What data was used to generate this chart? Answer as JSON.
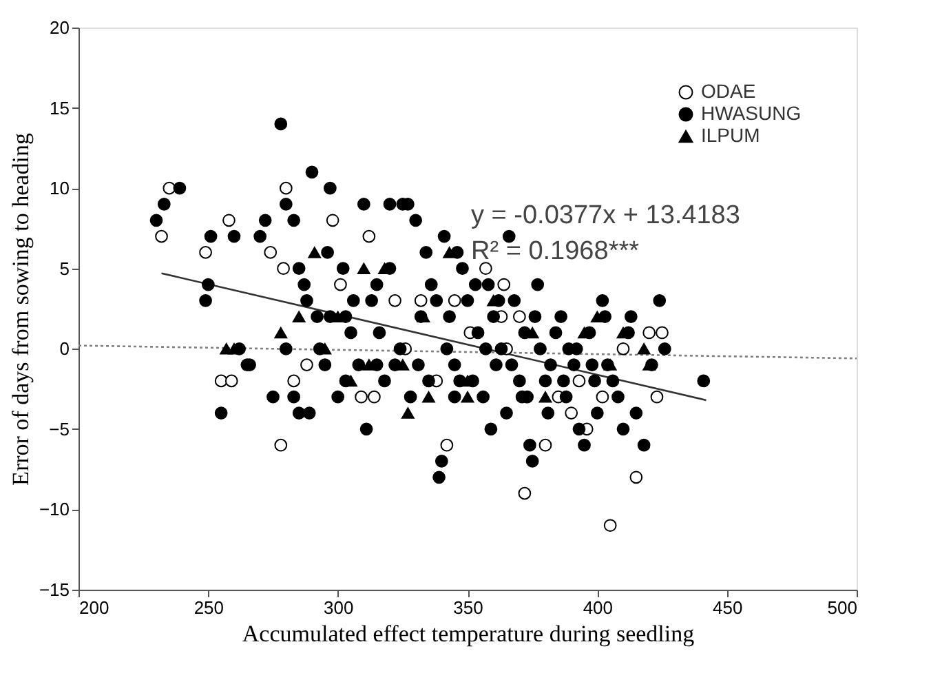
{
  "chart_data": {
    "type": "scatter",
    "xlabel": "Accumulated effect temperature during seedling",
    "ylabel": "Error of days from sowing to heading",
    "xlim": [
      200,
      500
    ],
    "xticks": [
      200,
      250,
      300,
      350,
      400,
      450,
      500
    ],
    "ylim": [
      -15,
      20
    ],
    "yticks": [
      -15,
      -10,
      -5,
      0,
      5,
      10,
      15,
      20
    ],
    "grid": false,
    "legend": "top right",
    "annotations": [
      "y = -0.0377x + 13.4183",
      "R² = 0.1968***"
    ],
    "series": [
      {
        "name": "ODAE",
        "marker": "circle",
        "color": "#ffffff",
        "x": [
          232,
          235,
          249,
          258,
          255,
          259,
          274,
          278,
          280,
          279,
          283,
          288,
          298,
          301,
          309,
          312,
          314,
          318,
          322,
          326,
          335,
          338,
          342,
          345,
          351,
          357,
          363,
          365,
          372,
          380,
          385,
          390,
          396,
          402,
          405,
          410,
          415,
          420,
          425,
          423,
          364,
          370,
          393,
          332
        ],
        "values": [
          7,
          10,
          6,
          8,
          -2,
          -2,
          6,
          -6,
          10,
          5,
          -2,
          -1,
          8,
          4,
          -3,
          7,
          -3,
          null,
          3,
          0,
          null,
          -2,
          -6,
          3,
          1,
          5,
          2,
          0,
          -9,
          -6,
          -3,
          -4,
          -5,
          -3,
          -11,
          0,
          -8,
          1,
          1,
          -3,
          4,
          2,
          -2,
          3
        ]
      },
      {
        "name": "HWASUNG",
        "marker": "circle",
        "color": "#000000",
        "x": [
          230,
          233,
          239,
          249,
          250,
          251,
          255,
          260,
          266,
          270,
          272,
          275,
          278,
          280,
          283,
          285,
          287,
          288,
          290,
          292,
          289,
          295,
          296,
          297,
          300,
          302,
          303,
          305,
          308,
          310,
          311,
          313,
          315,
          318,
          320,
          320,
          322,
          325,
          327,
          328,
          330,
          332,
          334,
          336,
          338,
          339,
          340,
          341,
          343,
          345,
          346,
          348,
          350,
          352,
          354,
          356,
          358,
          360,
          361,
          363,
          365,
          366,
          368,
          370,
          372,
          373,
          374,
          375,
          377,
          378,
          380,
          382,
          384,
          386,
          388,
          389,
          391,
          393,
          395,
          397,
          399,
          400,
          402,
          404,
          406,
          408,
          410,
          413,
          415,
          418,
          421,
          424,
          426,
          441,
          262,
          265,
          280,
          283,
          285,
          293,
          297,
          303,
          306,
          316,
          324,
          331,
          342,
          347,
          353,
          357,
          359,
          362,
          367,
          371,
          376,
          381,
          387,
          392,
          398,
          403,
          412,
          345,
          335,
          315
        ],
        "values": [
          8,
          9,
          10,
          3,
          4,
          7,
          -4,
          7,
          -1,
          7,
          8,
          -3,
          14,
          9,
          8,
          5,
          4,
          3,
          11,
          2,
          -4,
          -1,
          6,
          10,
          -3,
          5,
          2,
          1,
          -1,
          9,
          -5,
          3,
          4,
          -2,
          5,
          9,
          -1,
          9,
          9,
          -3,
          8,
          2,
          6,
          4,
          3,
          -8,
          -7,
          7,
          2,
          -1,
          6,
          5,
          3,
          -2,
          1,
          -3,
          4,
          2,
          -1,
          0,
          -4,
          7,
          3,
          -2,
          1,
          -3,
          -6,
          -7,
          4,
          0,
          -2,
          -1,
          1,
          2,
          -3,
          0,
          -1,
          -5,
          -6,
          1,
          -2,
          -4,
          3,
          -1,
          -2,
          -3,
          -5,
          2,
          -4,
          -6,
          -1,
          3,
          0,
          -2,
          0,
          -1,
          0,
          -3,
          -4,
          0,
          2,
          -2,
          3,
          1,
          0,
          -1,
          0,
          -2,
          4,
          0,
          -5,
          3,
          -1,
          -3,
          2,
          -4,
          -2,
          0,
          -1,
          2,
          1,
          -3,
          -2,
          -1
        ]
      },
      {
        "name": "ILPUM",
        "marker": "triangle",
        "color": "#000000",
        "x": [
          257,
          260,
          278,
          285,
          291,
          295,
          300,
          310,
          312,
          318,
          325,
          330,
          333,
          335,
          343,
          350,
          360,
          375,
          380,
          395,
          400,
          405,
          410,
          418,
          420,
          305,
          327,
          350
        ],
        "values": [
          0,
          0,
          1,
          2,
          6,
          0,
          2,
          5,
          -1,
          5,
          -1,
          null,
          2,
          -3,
          6,
          -3,
          3,
          1,
          -3,
          1,
          2,
          -1,
          1,
          0,
          -1,
          -2,
          -4,
          -2
        ]
      },
      {
        "type": "line",
        "line_style": "solid",
        "color": "#333333",
        "x": [
          232,
          442
        ],
        "values": [
          4.7,
          -3.2
        ]
      },
      {
        "type": "line",
        "line_style": "dotted",
        "color": "#808080",
        "x": [
          200,
          500
        ],
        "values": [
          0.2,
          -0.6
        ]
      }
    ]
  }
}
